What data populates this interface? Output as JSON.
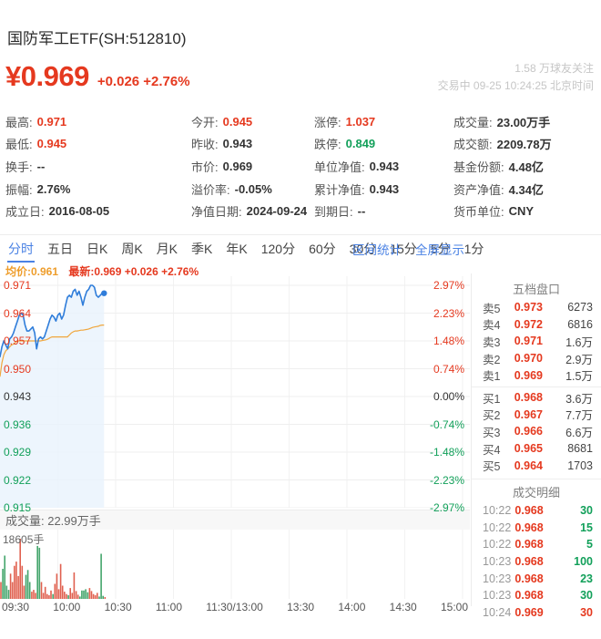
{
  "colors": {
    "red": "#e5391f",
    "green": "#12a05a",
    "dark": "#333333",
    "gray": "#999999",
    "blue": "#4a82e4",
    "orange": "#ee9d2b",
    "chart_line": "#2f7dda",
    "chart_fill": "#e9f2fc",
    "avg_line": "#f0a63c",
    "grid": "#efefef",
    "vol_red": "#e0604f",
    "vol_green": "#44a56c"
  },
  "header": {
    "title": "国防军工ETF(SH:512810)",
    "price": "¥0.969",
    "change_text": "+0.026 +2.76%",
    "followers": "1.58 万球友关注",
    "session_info": "交易中 09-25 10:24:25 北京时间"
  },
  "stats": {
    "columns": [
      [
        {
          "label": "最高:",
          "value": "0.971",
          "color": "red"
        },
        {
          "label": "最低:",
          "value": "0.945",
          "color": "red"
        },
        {
          "label": "换手:",
          "value": "--"
        },
        {
          "label": "振幅:",
          "value": "2.76%"
        },
        {
          "label": "成立日:",
          "value": "2016-08-05"
        }
      ],
      [
        {
          "label": "今开:",
          "value": "0.945",
          "color": "red"
        },
        {
          "label": "昨收:",
          "value": "0.943"
        },
        {
          "label": "市价:",
          "value": "0.969"
        },
        {
          "label": "溢价率:",
          "value": "-0.05%"
        },
        {
          "label": "净值日期:",
          "value": "2024-09-24"
        }
      ],
      [
        {
          "label": "涨停:",
          "value": "1.037",
          "color": "red"
        },
        {
          "label": "跌停:",
          "value": "0.849",
          "color": "green"
        },
        {
          "label": "单位净值:",
          "value": "0.943"
        },
        {
          "label": "累计净值:",
          "value": "0.943"
        },
        {
          "label": "到期日:",
          "value": "--"
        }
      ],
      [
        {
          "label": "成交量:",
          "value": "23.00万手"
        },
        {
          "label": "成交额:",
          "value": "2209.78万"
        },
        {
          "label": "基金份额:",
          "value": "4.48亿"
        },
        {
          "label": "资产净值:",
          "value": "4.34亿"
        },
        {
          "label": "货币单位:",
          "value": "CNY"
        }
      ]
    ]
  },
  "tabs": {
    "items": [
      "分时",
      "五日",
      "日K",
      "周K",
      "月K",
      "季K",
      "年K",
      "120分",
      "60分",
      "30分",
      "15分",
      "5分",
      "1分"
    ],
    "active_index": 0,
    "right_links": [
      "区间统计",
      "全屏显示"
    ]
  },
  "legend": {
    "avg": "均价:0.961",
    "latest": "最新:0.969 +0.026 +2.76%"
  },
  "chart_data": {
    "type": "line",
    "title": "分时",
    "prev_close": 0.943,
    "current_price": 0.969,
    "avg_price": 0.961,
    "session_minutes": 240,
    "elapsed_minutes": 54,
    "y_axis_top": 0.971,
    "y_axis_bottom": 0.915,
    "y_left": [
      "0.971",
      "0.964",
      "0.957",
      "0.950",
      "0.943",
      "0.936",
      "0.929",
      "0.922",
      "0.915"
    ],
    "y_right": [
      "2.97%",
      "2.23%",
      "1.48%",
      "0.74%",
      "0.00%",
      "-0.74%",
      "-1.48%",
      "-2.23%",
      "-2.97%"
    ],
    "x_labels": [
      "09:30",
      "10:00",
      "10:30",
      "11:00",
      "11:30/13:00",
      "13:30",
      "14:00",
      "14:30",
      "15:00"
    ],
    "price": [
      0.953,
      0.9555,
      0.957,
      0.956,
      0.955,
      0.9575,
      0.958,
      0.959,
      0.9605,
      0.962,
      0.9635,
      0.964,
      0.9635,
      0.961,
      0.9595,
      0.9595,
      0.96,
      0.9605,
      0.959,
      0.955,
      0.9575,
      0.958,
      0.9575,
      0.958,
      0.9595,
      0.961,
      0.9625,
      0.9635,
      0.963,
      0.962,
      0.9635,
      0.964,
      0.9625,
      0.9635,
      0.966,
      0.968,
      0.9685,
      0.968,
      0.9695,
      0.97,
      0.9685,
      0.9695,
      0.968,
      0.966,
      0.968,
      0.9695,
      0.97,
      0.971,
      0.971,
      0.9705,
      0.9685,
      0.968,
      0.9685,
      0.969,
      0.969
    ],
    "avg": [
      0.948,
      0.9515,
      0.9535,
      0.9545,
      0.955,
      0.9555,
      0.956,
      0.9562,
      0.9566,
      0.957,
      0.957,
      0.957,
      0.957,
      0.957,
      0.957,
      0.957,
      0.957,
      0.957,
      0.957,
      0.957,
      0.957,
      0.957,
      0.9571,
      0.9572,
      0.9573,
      0.9575,
      0.9578,
      0.958,
      0.958,
      0.958,
      0.958,
      0.958,
      0.958,
      0.958,
      0.958,
      0.958,
      0.9585,
      0.959,
      0.9593,
      0.9595,
      0.9595,
      0.9596,
      0.9597,
      0.9597,
      0.9598,
      0.9599,
      0.96,
      0.9602,
      0.9604,
      0.9605,
      0.9606,
      0.9607,
      0.9609,
      0.961,
      0.961
    ],
    "volume_max": 18605,
    "volume_bars": [
      [
        0.28,
        "r"
      ],
      [
        0.5,
        "g"
      ],
      [
        0.72,
        "g"
      ],
      [
        0.22,
        "g"
      ],
      [
        0.15,
        "g"
      ],
      [
        0.42,
        "r"
      ],
      [
        0.28,
        "r"
      ],
      [
        0.55,
        "r"
      ],
      [
        0.62,
        "r"
      ],
      [
        0.38,
        "r"
      ],
      [
        1.0,
        "r"
      ],
      [
        0.55,
        "r"
      ],
      [
        0.22,
        "r"
      ],
      [
        0.4,
        "g"
      ],
      [
        0.48,
        "g"
      ],
      [
        0.28,
        "g"
      ],
      [
        0.12,
        "r"
      ],
      [
        0.15,
        "r"
      ],
      [
        0.1,
        "r"
      ],
      [
        0.88,
        "g"
      ],
      [
        0.85,
        "g"
      ],
      [
        0.28,
        "r"
      ],
      [
        0.1,
        "r"
      ],
      [
        0.2,
        "r"
      ],
      [
        0.08,
        "r"
      ],
      [
        0.06,
        "r"
      ],
      [
        0.14,
        "r"
      ],
      [
        0.08,
        "g"
      ],
      [
        0.25,
        "r"
      ],
      [
        0.42,
        "r"
      ],
      [
        0.16,
        "r"
      ],
      [
        0.58,
        "r"
      ],
      [
        0.22,
        "r"
      ],
      [
        0.12,
        "r"
      ],
      [
        0.08,
        "r"
      ],
      [
        0.06,
        "g"
      ],
      [
        0.18,
        "r"
      ],
      [
        0.1,
        "r"
      ],
      [
        0.44,
        "r"
      ],
      [
        0.13,
        "r"
      ],
      [
        0.07,
        "r"
      ],
      [
        0.04,
        "g"
      ],
      [
        0.14,
        "g"
      ],
      [
        0.14,
        "g"
      ],
      [
        0.16,
        "g"
      ],
      [
        0.11,
        "g"
      ],
      [
        0.18,
        "r"
      ],
      [
        0.13,
        "r"
      ],
      [
        0.08,
        "r"
      ],
      [
        0.06,
        "r"
      ],
      [
        0.1,
        "r"
      ],
      [
        0.04,
        "g"
      ],
      [
        0.75,
        "g"
      ],
      [
        0.05,
        "g"
      ],
      [
        0.03,
        "r"
      ]
    ]
  },
  "volume": {
    "title": "成交量: 22.99万手",
    "max_label": "18605手"
  },
  "order_book": {
    "title": "五档盘口",
    "asks": [
      {
        "label": "卖5",
        "price": "0.973",
        "qty": "6273"
      },
      {
        "label": "卖4",
        "price": "0.972",
        "qty": "6816"
      },
      {
        "label": "卖3",
        "price": "0.971",
        "qty": "1.6万"
      },
      {
        "label": "卖2",
        "price": "0.970",
        "qty": "2.9万"
      },
      {
        "label": "卖1",
        "price": "0.969",
        "qty": "1.5万"
      }
    ],
    "bids": [
      {
        "label": "买1",
        "price": "0.968",
        "qty": "3.6万"
      },
      {
        "label": "买2",
        "price": "0.967",
        "qty": "7.7万"
      },
      {
        "label": "买3",
        "price": "0.966",
        "qty": "6.6万"
      },
      {
        "label": "买4",
        "price": "0.965",
        "qty": "8681"
      },
      {
        "label": "买5",
        "price": "0.964",
        "qty": "1703"
      }
    ]
  },
  "transactions": {
    "title": "成交明细",
    "rows": [
      {
        "time": "10:22",
        "price": "0.968",
        "qty": "30",
        "qty_color": "green"
      },
      {
        "time": "10:22",
        "price": "0.968",
        "qty": "15",
        "qty_color": "green"
      },
      {
        "time": "10:22",
        "price": "0.968",
        "qty": "5",
        "qty_color": "green"
      },
      {
        "time": "10:23",
        "price": "0.968",
        "qty": "100",
        "qty_color": "green"
      },
      {
        "time": "10:23",
        "price": "0.968",
        "qty": "23",
        "qty_color": "green"
      },
      {
        "time": "10:23",
        "price": "0.968",
        "qty": "30",
        "qty_color": "green"
      },
      {
        "time": "10:24",
        "price": "0.969",
        "qty": "30",
        "qty_color": "red"
      }
    ]
  }
}
